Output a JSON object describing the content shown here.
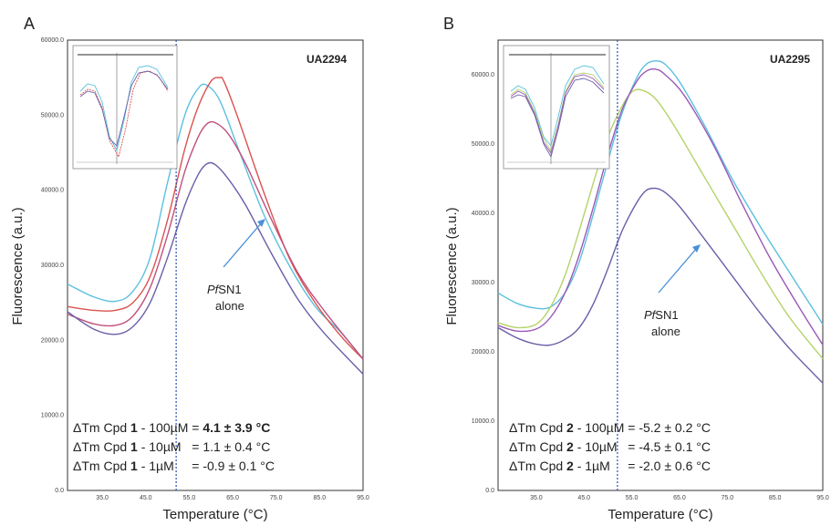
{
  "colors": {
    "blue": "#5bc0de",
    "red": "#d9534f",
    "pink": "#c0507e",
    "purple": "#6a5fa8",
    "green": "#b5d36a",
    "violet": "#9b59b6",
    "vline": "#2a4fb5",
    "arrow": "#4a8fd8"
  },
  "panel_a": {
    "letter": "A",
    "sample_id": "UA2294",
    "annotation": {
      "italic": "Pf",
      "rest": "SN1",
      "line2": "alone"
    },
    "dtm": [
      {
        "pre": "ΔTm Cpd ",
        "num": "1",
        "mid": " - 100µM = ",
        "val": "4.1 ± 3.9 °C",
        "bold_val": true
      },
      {
        "pre": "ΔTm Cpd ",
        "num": "1",
        "mid": " - 10µM   = ",
        "val": "1.1 ± 0.4 °C",
        "bold_val": false
      },
      {
        "pre": "ΔTm Cpd ",
        "num": "1",
        "mid": " - 1µM     = ",
        "val": "-0.9 ± 0.1 °C",
        "bold_val": false
      }
    ]
  },
  "panel_b": {
    "letter": "B",
    "sample_id": "UA2295",
    "annotation": {
      "italic": "Pf",
      "rest": "SN1",
      "line2": "alone"
    },
    "dtm": [
      {
        "pre": "ΔTm Cpd ",
        "num": "2",
        "mid": " - 100µM = ",
        "val": "-5.2 ± 0.2 °C",
        "bold_val": false
      },
      {
        "pre": "ΔTm Cpd ",
        "num": "2",
        "mid": " - 10µM   = ",
        "val": "-4.5 ± 0.1 °C",
        "bold_val": false
      },
      {
        "pre": "ΔTm Cpd ",
        "num": "2",
        "mid": " - 1µM     = ",
        "val": "-2.0 ± 0.6 °C",
        "bold_val": false
      }
    ]
  },
  "chart_data": [
    {
      "type": "line",
      "panel": "A",
      "title": "UA2294",
      "xlabel": "Temperature (°C)",
      "ylabel": "Fluorescence (a.u.)",
      "xlim": [
        27,
        95
      ],
      "ylim": [
        0,
        60000
      ],
      "xticks": [
        35.0,
        45.0,
        55.0,
        65.0,
        75.0,
        85.0,
        95.0
      ],
      "xtick_labels": [
        "35.0",
        "45.0",
        "55.0",
        "65.0",
        "75.0",
        "85.0",
        "95.0"
      ],
      "yticks": [
        0,
        10000,
        20000,
        30000,
        40000,
        50000,
        60000
      ],
      "ytick_labels": [
        "0.0",
        "10000.0",
        "20000.0",
        "30000.0",
        "40000.0",
        "50000.0",
        "60000.0"
      ],
      "vline_x": 52,
      "series": [
        {
          "color": "#5bc0de",
          "x": [
            27,
            33,
            38,
            42,
            46,
            50,
            54,
            57,
            59,
            62,
            66,
            72,
            78,
            84,
            90,
            95
          ],
          "y": [
            27500,
            25800,
            25200,
            26500,
            31000,
            41000,
            50000,
            53500,
            54000,
            52000,
            46000,
            37000,
            30000,
            24500,
            21000,
            17500
          ]
        },
        {
          "color": "#d9534f",
          "x": [
            27,
            33,
            38,
            42,
            46,
            50,
            54,
            57,
            60,
            62,
            63,
            66,
            72,
            78,
            84,
            90,
            95
          ],
          "y": [
            24500,
            24000,
            24000,
            25000,
            28500,
            36000,
            45500,
            51000,
            54500,
            55000,
            54500,
            50000,
            40000,
            31000,
            25000,
            20500,
            17500
          ]
        },
        {
          "color": "#c0507e",
          "x": [
            27,
            33,
            38,
            42,
            46,
            50,
            54,
            57,
            59,
            61,
            64,
            68,
            74,
            80,
            86,
            95
          ],
          "y": [
            23500,
            22200,
            22000,
            23200,
            27000,
            34000,
            42500,
            47000,
            48800,
            49000,
            47500,
            43500,
            36000,
            29000,
            24000,
            17500
          ]
        },
        {
          "color": "#6a5fa8",
          "x": [
            27,
            33,
            38,
            42,
            46,
            50,
            54,
            57,
            59,
            61,
            64,
            68,
            74,
            80,
            86,
            95
          ],
          "y": [
            23800,
            21500,
            20800,
            21800,
            25000,
            31000,
            38000,
            42000,
            43500,
            43400,
            41500,
            38000,
            31500,
            25500,
            21000,
            15500
          ]
        }
      ],
      "annotation_text": "PfSN1 alone"
    },
    {
      "type": "line",
      "panel": "B",
      "title": "UA2295",
      "xlabel": "Temperature (°C)",
      "ylabel": "Fluorescence (a.u.)",
      "xlim": [
        27,
        95
      ],
      "ylim": [
        0,
        65000
      ],
      "xticks": [
        35.0,
        45.0,
        55.0,
        65.0,
        75.0,
        85.0,
        95.0
      ],
      "xtick_labels": [
        "35.0",
        "45.0",
        "55.0",
        "65.0",
        "75.0",
        "85.0",
        "95.0"
      ],
      "yticks": [
        0,
        10000,
        20000,
        30000,
        40000,
        50000,
        60000
      ],
      "ytick_labels": [
        "0.0",
        "10000.0",
        "20000.0",
        "30000.0",
        "40000.0",
        "50000.0",
        "60000.0"
      ],
      "vline_x": 52,
      "series": [
        {
          "color": "#5bc0de",
          "x": [
            27,
            31,
            35,
            38,
            41,
            44,
            47,
            50,
            53,
            56,
            58,
            60,
            62,
            65,
            70,
            76,
            82,
            88,
            95
          ],
          "y": [
            28500,
            27000,
            26300,
            26500,
            28500,
            33000,
            40000,
            47500,
            54500,
            59500,
            61500,
            62000,
            61500,
            59000,
            53000,
            45000,
            38000,
            31500,
            24000
          ]
        },
        {
          "color": "#b5d36a",
          "x": [
            27,
            31,
            35,
            38,
            41,
            44,
            47,
            50,
            53,
            55,
            57,
            60,
            64,
            70,
            76,
            82,
            88,
            95
          ],
          "y": [
            24200,
            23500,
            24000,
            26500,
            31000,
            37500,
            44500,
            51000,
            55500,
            57500,
            57800,
            56500,
            52500,
            45500,
            38500,
            31500,
            25000,
            19000
          ]
        },
        {
          "color": "#9b59b6",
          "x": [
            27,
            31,
            35,
            38,
            41,
            44,
            47,
            50,
            53,
            56,
            58,
            60,
            62,
            66,
            72,
            78,
            84,
            90,
            95
          ],
          "y": [
            23800,
            23000,
            23300,
            25000,
            28500,
            34000,
            41000,
            48500,
            55000,
            59000,
            60500,
            60800,
            60000,
            57000,
            50000,
            41500,
            33500,
            26500,
            21000
          ]
        },
        {
          "color": "#6a5fa8",
          "x": [
            27,
            31,
            35,
            38,
            41,
            44,
            47,
            50,
            53,
            56,
            58,
            60,
            62,
            65,
            70,
            76,
            82,
            88,
            95
          ],
          "y": [
            23500,
            22000,
            21100,
            21000,
            21800,
            23500,
            27000,
            32000,
            37500,
            41500,
            43300,
            43600,
            43000,
            41000,
            36500,
            31000,
            25500,
            20500,
            15500
          ]
        }
      ],
      "annotation_text": "PfSN1 alone"
    }
  ]
}
